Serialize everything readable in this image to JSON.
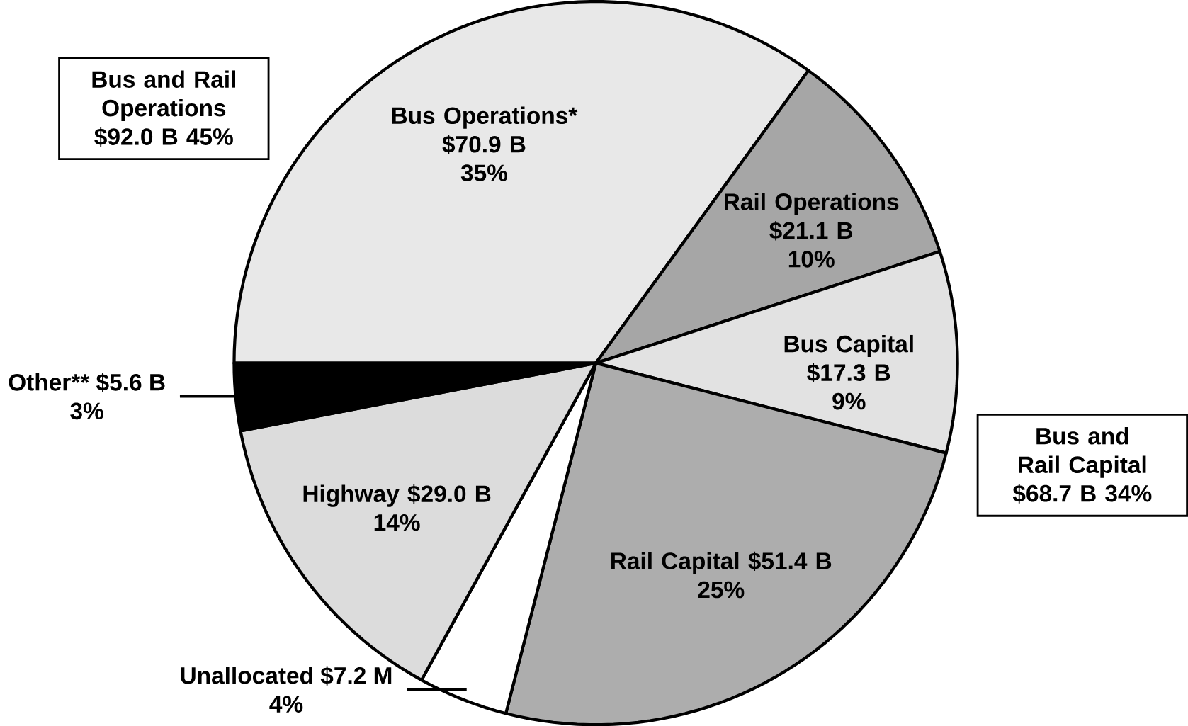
{
  "chart_data": {
    "type": "pie",
    "categories": [
      "Bus Operations* $70.9 B",
      "Rail Operations $21.1 B",
      "Bus Capital  $17.3 B",
      "Rail Capital  $51.4 B",
      "Unallocated  $7.2 M",
      "Highway  $29.0 B",
      "Other**  $5.6 B"
    ],
    "values": [
      35,
      10,
      9,
      25,
      4,
      14,
      3
    ],
    "value_labels": [
      "35%",
      "10%",
      "9%",
      "25%",
      "4%",
      "14%",
      "3%"
    ],
    "colors": [
      "#e8e8e8",
      "#a6a6a6",
      "#e2e2e2",
      "#adadad",
      "#ffffff",
      "#dcdcdc",
      "#000000"
    ],
    "annotations": [
      "Bus and Rail Operations $92.0 B 45%",
      "Bus and Rail Capital $68.7 B 34%"
    ]
  }
}
